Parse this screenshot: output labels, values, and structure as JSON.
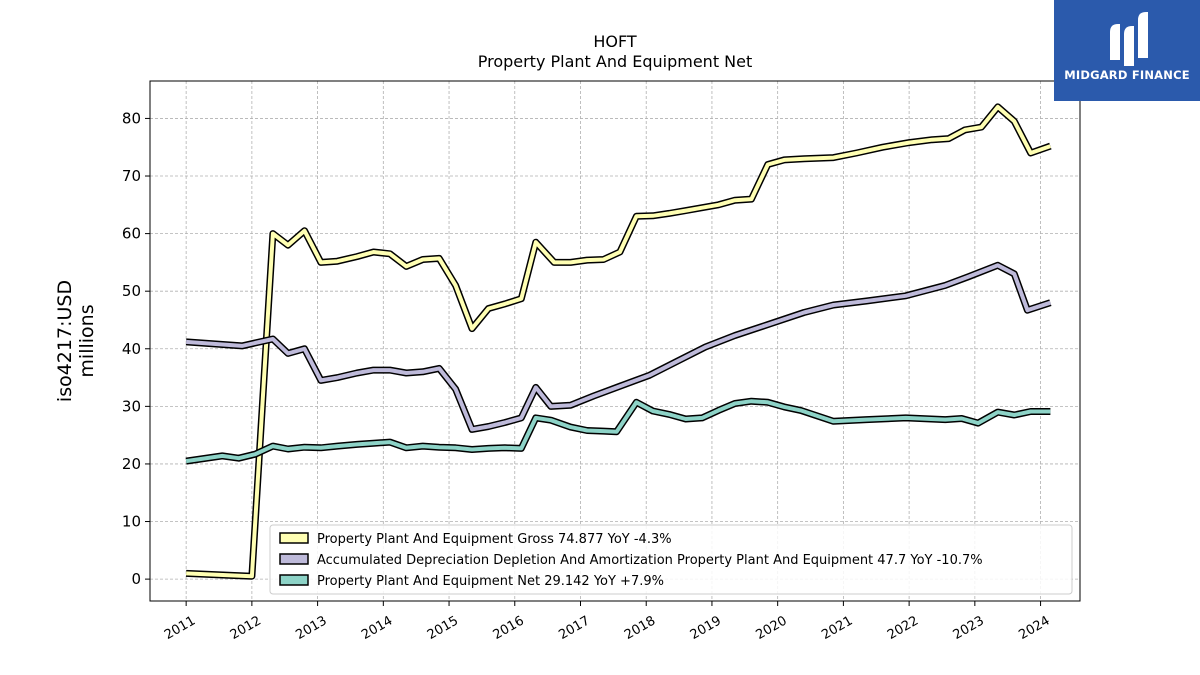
{
  "brand": {
    "name": "MIDGARD FINANCE",
    "color": "#2b5aac"
  },
  "chart_data": {
    "type": "line",
    "title": "HOFT",
    "subtitle": "Property Plant And Equipment Net",
    "ylabel": "iso4217:USD\nmillions",
    "xlabel": "",
    "xlim": [
      2010.45,
      2024.6
    ],
    "ylim": [
      -3.8,
      86.5
    ],
    "yticks": [
      0,
      10,
      20,
      30,
      40,
      50,
      60,
      70,
      80
    ],
    "xticks": [
      2011,
      2012,
      2013,
      2014,
      2015,
      2016,
      2017,
      2018,
      2019,
      2020,
      2021,
      2022,
      2023,
      2024
    ],
    "grid": true,
    "legend_position": "lower-right",
    "series": [
      {
        "name": "Property Plant And Equipment Gross",
        "legend": "Property Plant And Equipment Gross  74.877 YoY -4.3%",
        "color": "#ffffb3",
        "points": [
          [
            2011.0,
            1.0
          ],
          [
            2011.6,
            0.7
          ],
          [
            2012.0,
            0.5
          ],
          [
            2012.32,
            60.0
          ],
          [
            2012.55,
            58.0
          ],
          [
            2012.8,
            60.5
          ],
          [
            2013.05,
            55.0
          ],
          [
            2013.3,
            55.2
          ],
          [
            2013.6,
            56.0
          ],
          [
            2013.85,
            56.8
          ],
          [
            2014.1,
            56.5
          ],
          [
            2014.35,
            54.3
          ],
          [
            2014.6,
            55.5
          ],
          [
            2014.85,
            55.7
          ],
          [
            2015.1,
            51.0
          ],
          [
            2015.35,
            43.5
          ],
          [
            2015.6,
            47.0
          ],
          [
            2015.85,
            47.8
          ],
          [
            2016.1,
            48.7
          ],
          [
            2016.32,
            58.5
          ],
          [
            2016.6,
            55.0
          ],
          [
            2016.85,
            55.0
          ],
          [
            2017.1,
            55.4
          ],
          [
            2017.35,
            55.5
          ],
          [
            2017.6,
            56.8
          ],
          [
            2017.85,
            63.0
          ],
          [
            2018.1,
            63.1
          ],
          [
            2018.35,
            63.5
          ],
          [
            2018.6,
            64.0
          ],
          [
            2018.85,
            64.5
          ],
          [
            2019.1,
            65.0
          ],
          [
            2019.35,
            65.8
          ],
          [
            2019.6,
            66.0
          ],
          [
            2019.85,
            72.0
          ],
          [
            2020.1,
            72.8
          ],
          [
            2020.4,
            73.0
          ],
          [
            2020.85,
            73.2
          ],
          [
            2021.2,
            74.0
          ],
          [
            2021.6,
            75.0
          ],
          [
            2022.0,
            75.8
          ],
          [
            2022.35,
            76.3
          ],
          [
            2022.6,
            76.5
          ],
          [
            2022.85,
            78.0
          ],
          [
            2023.1,
            78.5
          ],
          [
            2023.35,
            82.0
          ],
          [
            2023.6,
            79.5
          ],
          [
            2023.85,
            74.0
          ],
          [
            2024.15,
            75.2
          ]
        ]
      },
      {
        "name": "Accumulated Depreciation Depletion And Amortization Property Plant And Equipment",
        "legend": "Accumulated Depreciation Depletion And Amortization Property Plant And Equipment  47.7 YoY -10.7%",
        "color": "#bebada",
        "points": [
          [
            2011.0,
            41.2
          ],
          [
            2011.85,
            40.5
          ],
          [
            2012.32,
            41.7
          ],
          [
            2012.55,
            39.2
          ],
          [
            2012.8,
            40.0
          ],
          [
            2013.05,
            34.5
          ],
          [
            2013.3,
            35.0
          ],
          [
            2013.6,
            35.8
          ],
          [
            2013.85,
            36.3
          ],
          [
            2014.1,
            36.3
          ],
          [
            2014.35,
            35.8
          ],
          [
            2014.6,
            36.0
          ],
          [
            2014.85,
            36.6
          ],
          [
            2015.1,
            33.0
          ],
          [
            2015.35,
            26.0
          ],
          [
            2015.6,
            26.5
          ],
          [
            2015.85,
            27.2
          ],
          [
            2016.1,
            28.0
          ],
          [
            2016.32,
            33.3
          ],
          [
            2016.55,
            30.0
          ],
          [
            2016.85,
            30.2
          ],
          [
            2017.2,
            31.8
          ],
          [
            2017.6,
            33.5
          ],
          [
            2018.05,
            35.4
          ],
          [
            2018.5,
            38.0
          ],
          [
            2018.9,
            40.3
          ],
          [
            2019.35,
            42.3
          ],
          [
            2019.85,
            44.2
          ],
          [
            2020.4,
            46.3
          ],
          [
            2020.85,
            47.6
          ],
          [
            2021.35,
            48.3
          ],
          [
            2021.95,
            49.2
          ],
          [
            2022.55,
            51.0
          ],
          [
            2022.9,
            52.5
          ],
          [
            2023.35,
            54.5
          ],
          [
            2023.6,
            53.0
          ],
          [
            2023.8,
            46.7
          ],
          [
            2024.15,
            48.0
          ]
        ]
      },
      {
        "name": "Property Plant And Equipment Net",
        "legend": "Property Plant And Equipment Net  29.142 YoY +7.9%",
        "color": "#8dd3c7",
        "points": [
          [
            2011.0,
            20.5
          ],
          [
            2011.55,
            21.4
          ],
          [
            2011.8,
            21.0
          ],
          [
            2012.05,
            21.7
          ],
          [
            2012.32,
            23.1
          ],
          [
            2012.55,
            22.6
          ],
          [
            2012.8,
            22.9
          ],
          [
            2013.05,
            22.8
          ],
          [
            2013.3,
            23.1
          ],
          [
            2013.6,
            23.4
          ],
          [
            2013.85,
            23.6
          ],
          [
            2014.1,
            23.8
          ],
          [
            2014.35,
            22.8
          ],
          [
            2014.6,
            23.1
          ],
          [
            2014.85,
            22.9
          ],
          [
            2015.1,
            22.8
          ],
          [
            2015.35,
            22.5
          ],
          [
            2015.6,
            22.7
          ],
          [
            2015.85,
            22.8
          ],
          [
            2016.1,
            22.7
          ],
          [
            2016.32,
            28.0
          ],
          [
            2016.55,
            27.6
          ],
          [
            2016.85,
            26.4
          ],
          [
            2017.1,
            25.8
          ],
          [
            2017.35,
            25.7
          ],
          [
            2017.55,
            25.6
          ],
          [
            2017.85,
            30.7
          ],
          [
            2018.1,
            29.2
          ],
          [
            2018.35,
            28.6
          ],
          [
            2018.6,
            27.8
          ],
          [
            2018.85,
            28.0
          ],
          [
            2019.1,
            29.3
          ],
          [
            2019.35,
            30.5
          ],
          [
            2019.6,
            30.9
          ],
          [
            2019.85,
            30.7
          ],
          [
            2020.1,
            29.9
          ],
          [
            2020.35,
            29.3
          ],
          [
            2020.85,
            27.4
          ],
          [
            2021.35,
            27.7
          ],
          [
            2021.95,
            28.0
          ],
          [
            2022.55,
            27.7
          ],
          [
            2022.8,
            27.9
          ],
          [
            2023.05,
            27.1
          ],
          [
            2023.35,
            29.0
          ],
          [
            2023.6,
            28.5
          ],
          [
            2023.85,
            29.1
          ],
          [
            2024.15,
            29.1
          ]
        ]
      }
    ]
  }
}
